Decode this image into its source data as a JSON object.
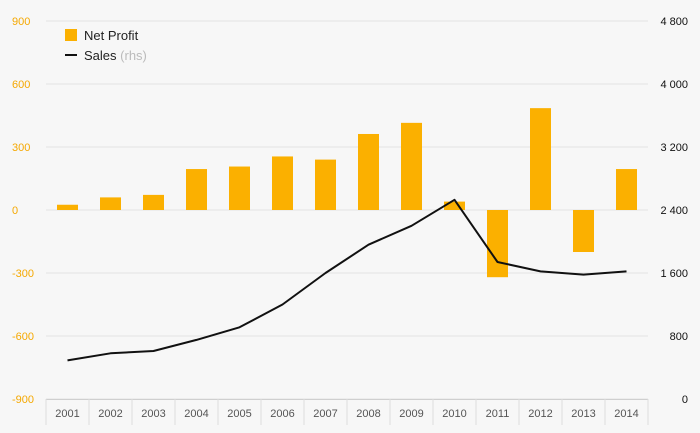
{
  "chart_data": {
    "type": "bar+line",
    "categories": [
      "2001",
      "2002",
      "2003",
      "2004",
      "2005",
      "2006",
      "2007",
      "2008",
      "2009",
      "2010",
      "2011",
      "2012",
      "2013",
      "2014"
    ],
    "series": [
      {
        "name": "Net Profit",
        "type": "bar",
        "axis": "left",
        "values": [
          25,
          60,
          72,
          195,
          207,
          255,
          240,
          362,
          415,
          40,
          -320,
          485,
          -200,
          195
        ]
      },
      {
        "name": "Sales",
        "note": "(rhs)",
        "type": "line",
        "axis": "right",
        "values": [
          490,
          580,
          610,
          750,
          910,
          1200,
          1600,
          1960,
          2200,
          2530,
          1740,
          1620,
          1580,
          1620
        ]
      }
    ],
    "y_left": {
      "min": -900,
      "max": 900,
      "ticks": [
        900,
        600,
        300,
        0,
        -300,
        -600,
        -900
      ],
      "tick_labels": [
        "900",
        "600",
        "300",
        "0",
        "-300",
        "-600",
        "-900"
      ]
    },
    "y_right": {
      "min": 0,
      "max": 4800,
      "ticks": [
        4800,
        4000,
        3200,
        2400,
        1600,
        800,
        0
      ],
      "tick_labels": [
        "4 800",
        "4 000",
        "3 200",
        "2 400",
        "1 600",
        "800",
        "0"
      ]
    },
    "grid": "horizontal",
    "legend": "top-left",
    "colors": {
      "bar": "#fbb000",
      "line": "#111111",
      "left_axis": "#f5a800",
      "right_axis": "#111111",
      "grid": "#e3e3e3",
      "background": "#f7f7f7"
    }
  }
}
